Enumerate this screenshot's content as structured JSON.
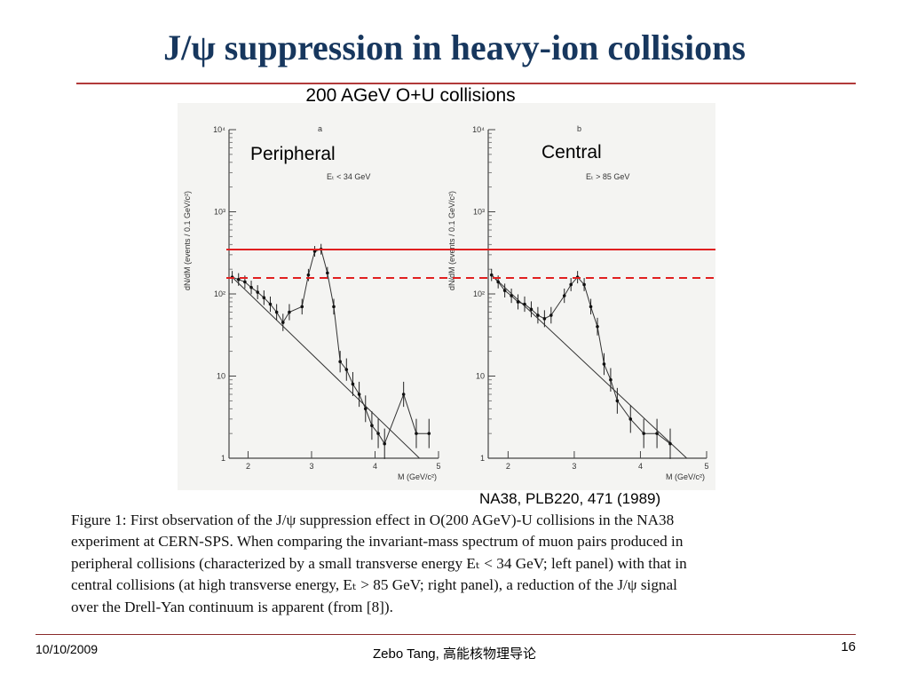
{
  "title": "J/ψ suppression in heavy-ion collisions",
  "subtitle": "200 AGeV O+U collisions",
  "panels": [
    {
      "label": "Peripheral",
      "letter": "a",
      "cut": "Eₜ < 34 GeV"
    },
    {
      "label": "Central",
      "letter": "b",
      "cut": "Eₜ > 85 GeV"
    }
  ],
  "reference": "NA38, PLB220, 471 (1989)",
  "caption": [
    "Figure 1:  First observation of the J/ψ suppression effect in O(200 AGeV)-U collisions in the NA38",
    "experiment at CERN-SPS. When comparing the invariant-mass spectrum of muon pairs produced in",
    "peripheral collisions (characterized by a small transverse energy Eₜ < 34 GeV; left panel) with that in",
    "central collisions (at high transverse energy, Eₜ > 85 GeV; right panel), a reduction of the J/ψ signal",
    "over the Drell-Yan continuum is apparent (from [8])."
  ],
  "footer": {
    "date": "10/10/2009",
    "author": "Zebo Tang, 高能核物理导论",
    "page": "16"
  },
  "colors": {
    "title": "#17375e",
    "rule": "#b13a3a",
    "reference_line": "#e02020"
  },
  "chart_data": [
    {
      "type": "scatter",
      "xlabel": "M (GeV/c²)",
      "ylabel": "dN/dM (events / 0.1 GeV/c²)",
      "x_ticks": [
        "2",
        "3",
        "4",
        "5"
      ],
      "y_ticks": [
        "1",
        "10",
        "10²",
        "10³",
        "10⁴"
      ],
      "xlim": [
        1.7,
        5.0
      ],
      "ylim": [
        1,
        10000
      ],
      "log_y": true,
      "points": [
        [
          1.75,
          160
        ],
        [
          1.85,
          150
        ],
        [
          1.95,
          140
        ],
        [
          2.05,
          120
        ],
        [
          2.15,
          105
        ],
        [
          2.25,
          90
        ],
        [
          2.35,
          75
        ],
        [
          2.45,
          60
        ],
        [
          2.55,
          45
        ],
        [
          2.65,
          60
        ],
        [
          2.85,
          70
        ],
        [
          2.95,
          170
        ],
        [
          3.05,
          330
        ],
        [
          3.15,
          350
        ],
        [
          3.25,
          180
        ],
        [
          3.35,
          70
        ],
        [
          3.45,
          15
        ],
        [
          3.55,
          12
        ],
        [
          3.65,
          8
        ],
        [
          3.75,
          6
        ],
        [
          3.85,
          4
        ],
        [
          3.95,
          2.5
        ],
        [
          4.05,
          2
        ],
        [
          4.15,
          1.5
        ],
        [
          4.45,
          6
        ],
        [
          4.65,
          2
        ],
        [
          4.85,
          2
        ]
      ]
    },
    {
      "type": "scatter",
      "xlabel": "M (GeV/c²)",
      "ylabel": "dN/dM (events / 0.1 GeV/c²)",
      "x_ticks": [
        "2",
        "3",
        "4",
        "5"
      ],
      "y_ticks": [
        "1",
        "10",
        "10²",
        "10³",
        "10⁴"
      ],
      "xlim": [
        1.7,
        5.0
      ],
      "ylim": [
        1,
        10000
      ],
      "log_y": true,
      "points": [
        [
          1.75,
          170
        ],
        [
          1.85,
          140
        ],
        [
          1.95,
          110
        ],
        [
          2.05,
          95
        ],
        [
          2.15,
          80
        ],
        [
          2.25,
          75
        ],
        [
          2.35,
          65
        ],
        [
          2.45,
          55
        ],
        [
          2.55,
          50
        ],
        [
          2.65,
          55
        ],
        [
          2.85,
          95
        ],
        [
          2.95,
          130
        ],
        [
          3.05,
          160
        ],
        [
          3.15,
          130
        ],
        [
          3.25,
          70
        ],
        [
          3.35,
          40
        ],
        [
          3.45,
          14
        ],
        [
          3.55,
          9
        ],
        [
          3.65,
          5
        ],
        [
          3.85,
          3
        ],
        [
          4.05,
          2
        ],
        [
          4.25,
          2
        ],
        [
          4.45,
          1.5
        ]
      ]
    }
  ]
}
